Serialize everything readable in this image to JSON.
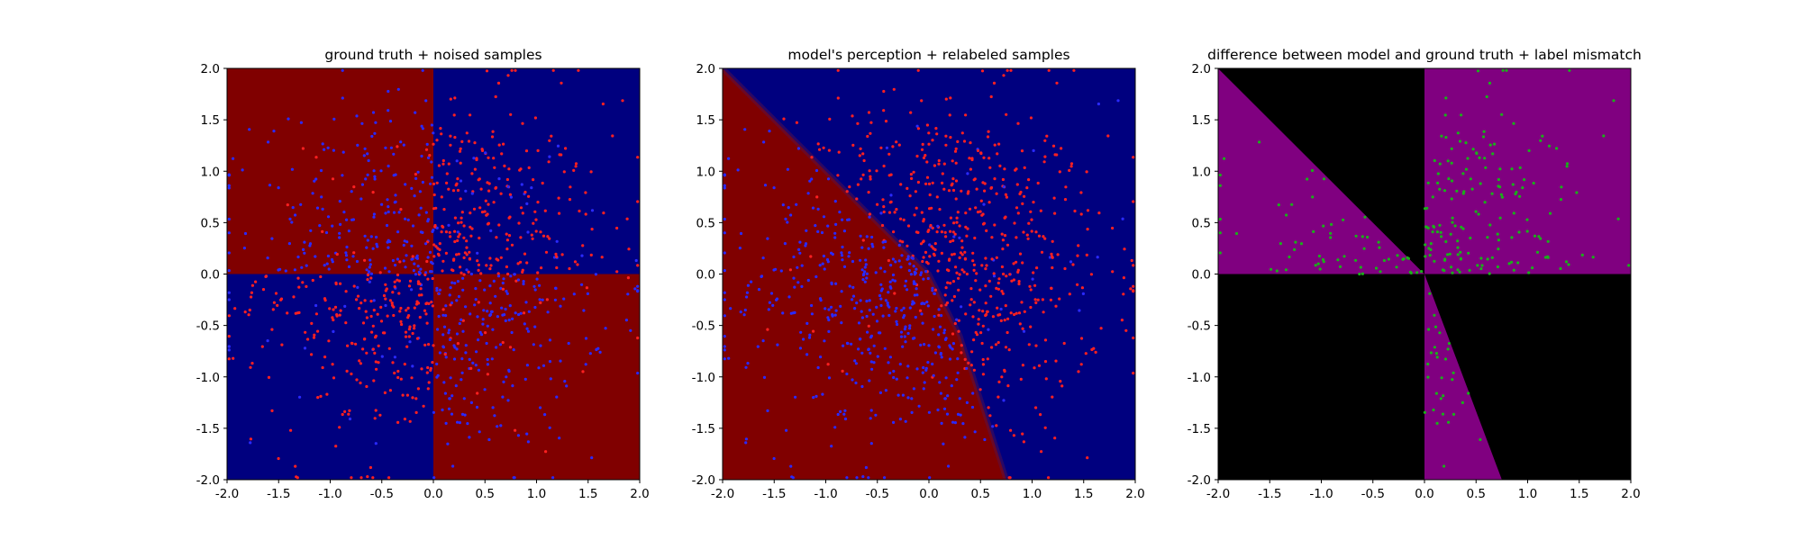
{
  "chart_data": [
    {
      "type": "heatmap",
      "title": "ground truth + noised samples",
      "xlim": [
        -2.0,
        2.0
      ],
      "ylim": [
        -2.0,
        2.0
      ],
      "xticks": [
        "-2.0",
        "-1.5",
        "-1.0",
        "-0.5",
        "0.0",
        "0.5",
        "1.0",
        "1.5",
        "2.0"
      ],
      "yticks": [
        "-2.0",
        "-1.5",
        "-1.0",
        "-0.5",
        "0.0",
        "0.5",
        "1.0",
        "1.5",
        "2.0"
      ],
      "grid": false,
      "background_regions": [
        {
          "region": "x<0 and y>0",
          "color": "#800000"
        },
        {
          "region": "x>0 and y>0",
          "color": "#00007f"
        },
        {
          "region": "x<0 and y<0",
          "color": "#00007f"
        },
        {
          "region": "x>0 and y<0",
          "color": "#800000"
        }
      ],
      "scatter": {
        "approx_count": 1000,
        "colors": {
          "red": "#ff2020",
          "blue": "#2a2aff"
        },
        "description": "samples spread over the square; points mostly colored opposite to their quadrant"
      }
    },
    {
      "type": "heatmap",
      "title": "model's perception + relabeled samples",
      "xlim": [
        -2.0,
        2.0
      ],
      "ylim": [
        -2.0,
        2.0
      ],
      "xticks": [
        "-2.0",
        "-1.5",
        "-1.0",
        "-0.5",
        "0.0",
        "0.5",
        "1.0",
        "1.5",
        "2.0"
      ],
      "yticks": [
        "-2.0",
        "-1.5",
        "-1.0",
        "-0.5",
        "0.0",
        "0.5",
        "1.0",
        "1.5",
        "2.0"
      ],
      "grid": false,
      "decision_boundary": {
        "points": [
          [
            -2.0,
            2.0
          ],
          [
            0.0,
            0.0
          ],
          [
            0.3,
            -0.6
          ],
          [
            0.75,
            -2.0
          ]
        ],
        "left_color": "#800000",
        "right_color": "#00007f"
      },
      "scatter": {
        "approx_count": 1000,
        "colors": {
          "red": "#ff2020",
          "blue": "#2a2aff"
        }
      }
    },
    {
      "type": "heatmap",
      "title": "difference between model and ground truth + label mismatch",
      "xlim": [
        -2.0,
        2.0
      ],
      "ylim": [
        -2.0,
        2.0
      ],
      "xticks": [
        "-2.0",
        "-1.5",
        "-1.0",
        "-0.5",
        "0.0",
        "0.5",
        "1.0",
        "1.5",
        "2.0"
      ],
      "yticks": [
        "-2.0",
        "-1.5",
        "-1.0",
        "-0.5",
        "0.0",
        "0.5",
        "1.0",
        "1.5",
        "2.0"
      ],
      "grid": false,
      "colors": {
        "mismatch": "#800080",
        "match": "#000000"
      },
      "scatter": {
        "approx_count": 330,
        "color": "#1ab01a"
      }
    }
  ]
}
